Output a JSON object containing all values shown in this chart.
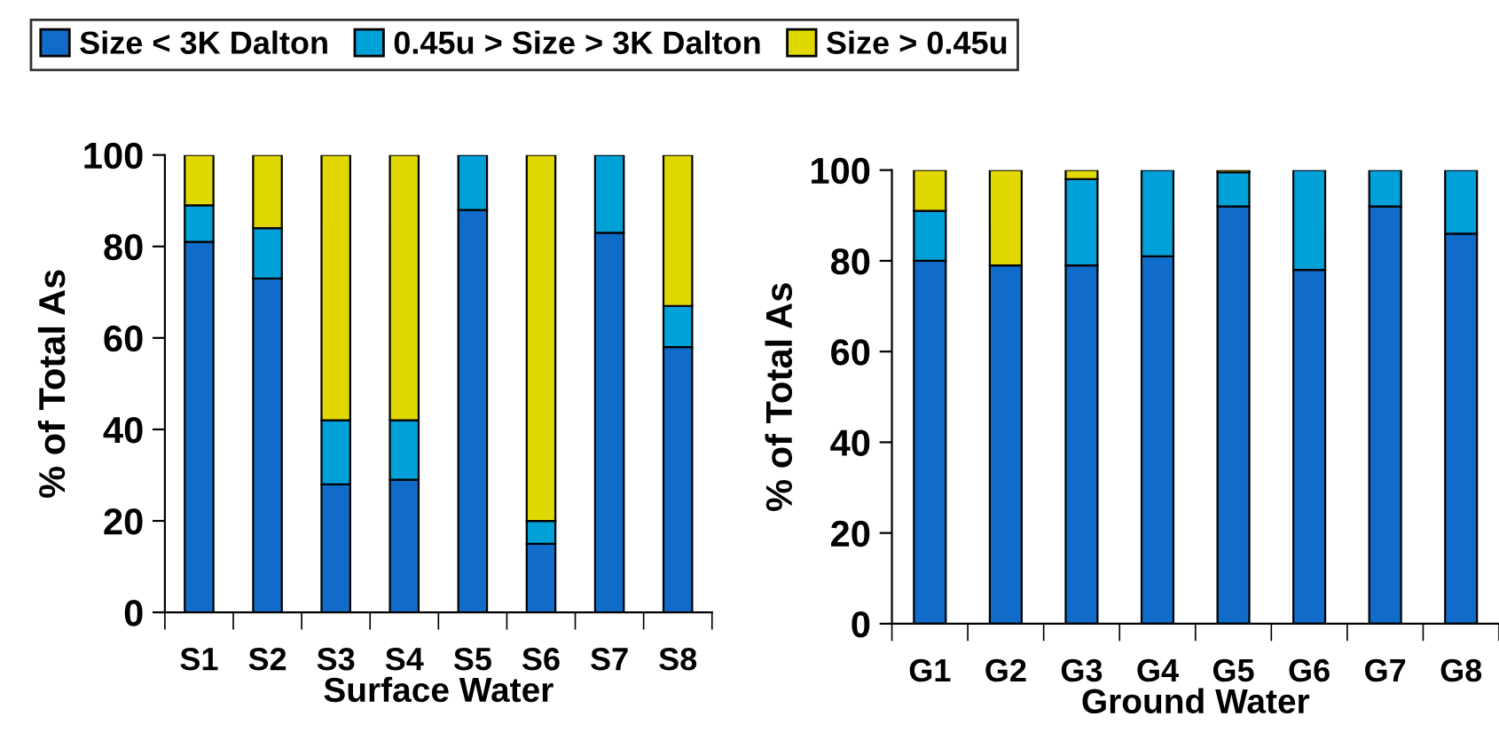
{
  "chart_data": [
    {
      "type": "bar",
      "stacked": true,
      "categories": [
        "S1",
        "S2",
        "S3",
        "S4",
        "S5",
        "S6",
        "S7",
        "S8"
      ],
      "xlabel": "Surface Water",
      "ylabel": "% of Total As",
      "ylim": [
        0,
        100
      ],
      "yticks": [
        0,
        20,
        40,
        60,
        80,
        100
      ],
      "legend": "top",
      "grid": false,
      "series": [
        {
          "name": "Size < 3K Dalton",
          "color": "#106cc8",
          "values": [
            81,
            73,
            28,
            29,
            88,
            15,
            83,
            58
          ]
        },
        {
          "name": "0.45u > Size > 3K Dalton",
          "color": "#00a0d8",
          "values": [
            8,
            11,
            14,
            13,
            12,
            5,
            17,
            9
          ]
        },
        {
          "name": "Size > 0.45u",
          "color": "#e0d800",
          "values": [
            11,
            16,
            58,
            58,
            0,
            80,
            0,
            33
          ]
        }
      ]
    },
    {
      "type": "bar",
      "stacked": true,
      "categories": [
        "G1",
        "G2",
        "G3",
        "G4",
        "G5",
        "G6",
        "G7",
        "G8"
      ],
      "xlabel": "Ground Water",
      "ylabel": "% of Total As",
      "ylim": [
        0,
        100
      ],
      "yticks": [
        0,
        20,
        40,
        60,
        80,
        100
      ],
      "grid": false,
      "series": [
        {
          "color": "#106cc8",
          "values": [
            80,
            79,
            79,
            81,
            92,
            78,
            92,
            86
          ]
        },
        {
          "color": "#00a0d8",
          "values": [
            11,
            0,
            19,
            19,
            7.5,
            22,
            8,
            14
          ]
        },
        {
          "color": "#e0d800",
          "values": [
            9,
            21,
            2,
            0,
            0.5,
            0,
            0,
            0
          ]
        }
      ]
    }
  ]
}
